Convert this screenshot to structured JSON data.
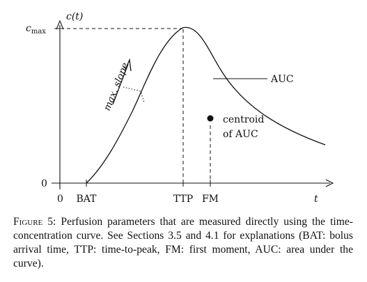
{
  "figure": {
    "y_axis_label": "c(t)",
    "x_axis_label": "t",
    "y_max_label": "c",
    "y_max_subscript": "max",
    "y_zero_label": "0",
    "x_zero_label": "0",
    "x_ticks": [
      "BAT",
      "TTP",
      "FM"
    ],
    "slope_label": "max. slope",
    "auc_label": "AUC",
    "centroid_label_line1": "centroid",
    "centroid_label_line2": "of AUC"
  },
  "caption": {
    "label": "Figure 5:",
    "text": " Perfusion parameters that are measured directly using the time-concentration curve. See Sections 3.5 and 4.1 for explanations (BAT: bolus arrival time, TTP: time-to-peak, FM: first moment, AUC: area under the curve)."
  }
}
